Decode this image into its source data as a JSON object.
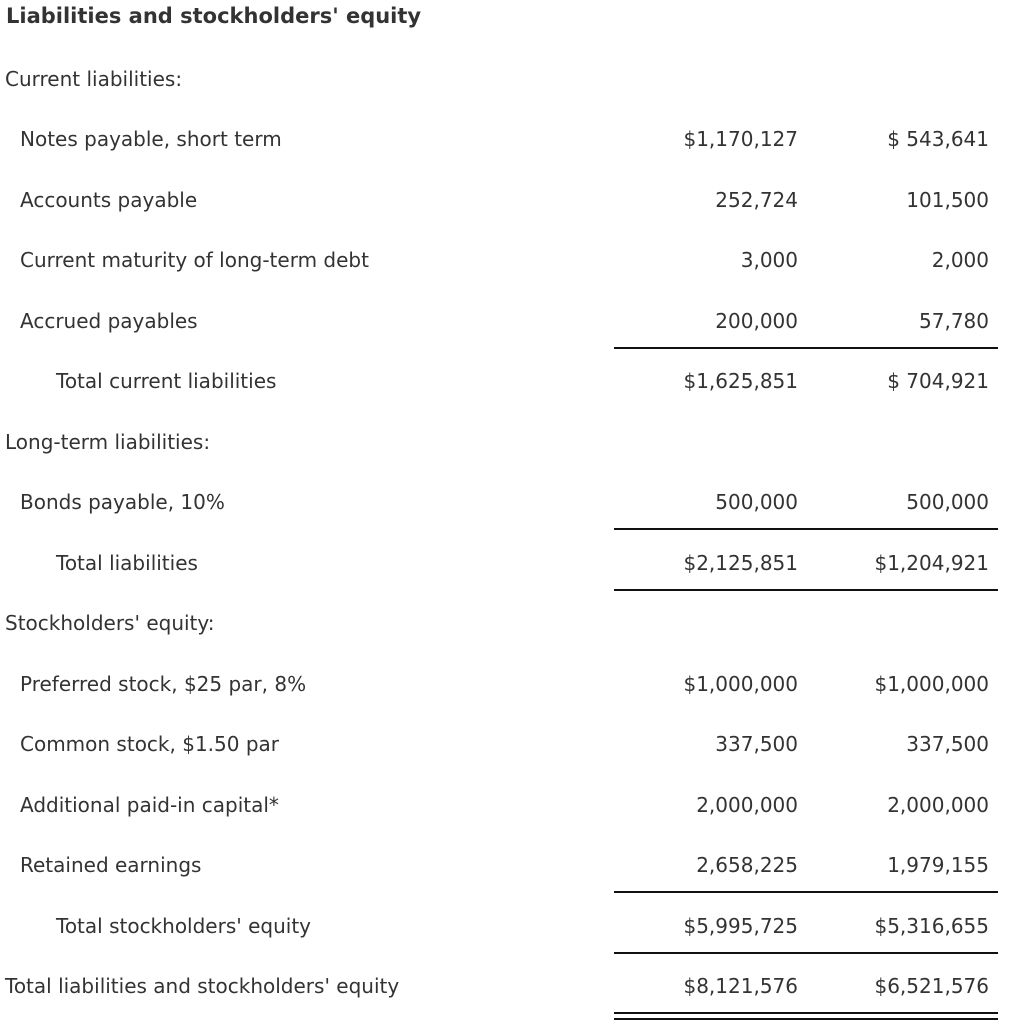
{
  "colors": {
    "text": "#333333",
    "rule": "#111111",
    "background": "#ffffff"
  },
  "table": {
    "title": "Liabilities and stockholders' equity",
    "columns": {
      "count": 2,
      "note": "two unlabeled amount columns, right-aligned"
    },
    "rows": [
      {
        "type": "section",
        "label": "Current liabilities:"
      },
      {
        "type": "item",
        "label": "Notes payable, short term",
        "col1": "$1,170,127",
        "col2": "$ 543,641"
      },
      {
        "type": "item",
        "label": "Accounts payable",
        "col1": "252,724",
        "col2": "101,500"
      },
      {
        "type": "item",
        "label": "Current maturity of long-term debt",
        "col1": "3,000",
        "col2": "2,000"
      },
      {
        "type": "item",
        "label": "Accrued payables",
        "col1": "200,000",
        "col2": "57,780"
      },
      {
        "type": "total",
        "label": "Total current liabilities",
        "col1": "$1,625,851",
        "col2": "$ 704,921"
      },
      {
        "type": "section",
        "label": "Long-term liabilities:"
      },
      {
        "type": "item",
        "label": "Bonds payable, 10%",
        "col1": "500,000",
        "col2": "500,000"
      },
      {
        "type": "total",
        "label": "Total liabilities",
        "col1": "$2,125,851",
        "col2": "$1,204,921"
      },
      {
        "type": "section",
        "label": "Stockholders' equity:"
      },
      {
        "type": "item",
        "label": "Preferred stock, $25 par, 8%",
        "col1": "$1,000,000",
        "col2": "$1,000,000"
      },
      {
        "type": "item",
        "label": "Common stock, $1.50 par",
        "col1": "337,500",
        "col2": "337,500"
      },
      {
        "type": "item",
        "label": "Additional paid-in capital*",
        "col1": "2,000,000",
        "col2": "2,000,000"
      },
      {
        "type": "item",
        "label": "Retained earnings",
        "col1": "2,658,225",
        "col2": "1,979,155"
      },
      {
        "type": "total",
        "label": "Total stockholders' equity",
        "col1": "$5,995,725",
        "col2": "$5,316,655"
      },
      {
        "type": "grand-total",
        "label": "Total liabilities and stockholders' equity",
        "col1": "$8,121,576",
        "col2": "$6,521,576"
      }
    ]
  }
}
